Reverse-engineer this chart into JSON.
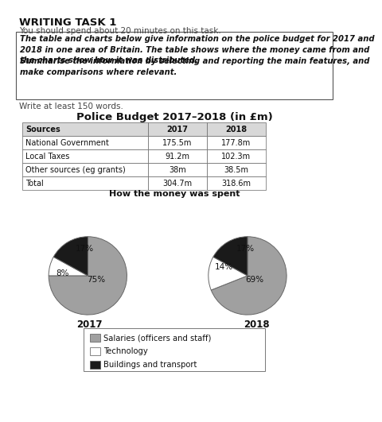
{
  "title_main": "WRITING TASK 1",
  "subtitle": "You should spend about 20 minutes on this task.",
  "box_line1": "The table and charts below give information on the police budget for 2017 and\n2018 in one area of Britain. The table shows where the money came from and\nthe charts show how it was distributed.",
  "box_line2": "Summarise the information by selecting and reporting the main features, and\nmake comparisons where relevant.",
  "write_text": "Write at least 150 words.",
  "table_title": "Police Budget 2017–2018 (in £m)",
  "table_headers": [
    "Sources",
    "2017",
    "2018"
  ],
  "table_rows": [
    [
      "National Government",
      "175.5m",
      "177.8m"
    ],
    [
      "Local Taxes",
      "91.2m",
      "102.3m"
    ],
    [
      "Other sources (eg grants)",
      "38m",
      "38.5m"
    ],
    [
      "Total",
      "304.7m",
      "318.6m"
    ]
  ],
  "pie_title": "How the money was spent",
  "pie_2017_values": [
    75,
    8,
    17
  ],
  "pie_2018_values": [
    69,
    14,
    17
  ],
  "pie_colors": [
    "#a0a0a0",
    "#ffffff",
    "#1a1a1a"
  ],
  "pie_edgecolor": "#555555",
  "pie_2017_year": "2017",
  "pie_2018_year": "2018",
  "legend_labels": [
    "Salaries (officers and staff)",
    "Technology",
    "Buildings and transport"
  ],
  "legend_colors": [
    "#a0a0a0",
    "#ffffff",
    "#1a1a1a"
  ],
  "bg_color": "#ffffff"
}
